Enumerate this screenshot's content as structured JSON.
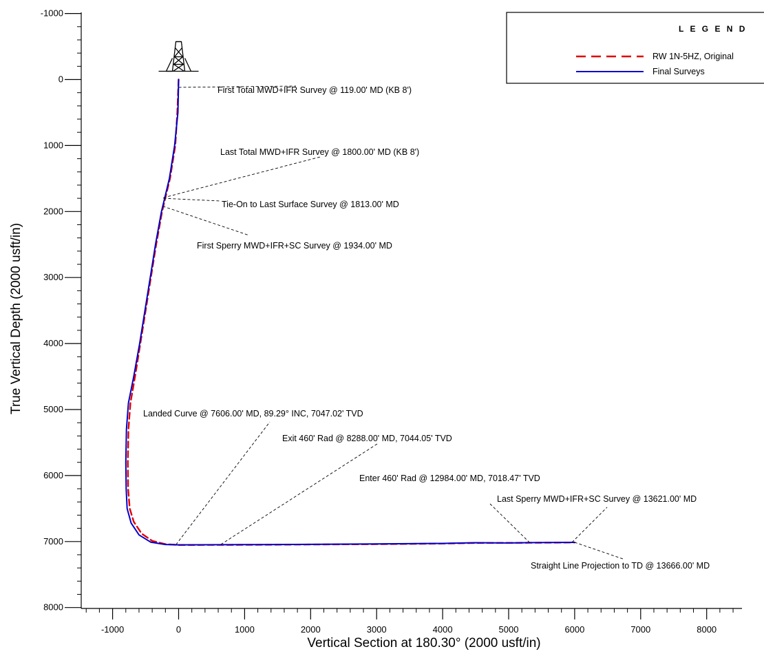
{
  "chart_data": {
    "type": "line",
    "xlabel": "Vertical Section at 180.30° (2000 usft/in)",
    "ylabel": "True Vertical Depth (2000 usft/in)",
    "xlim": [
      -1400,
      8500
    ],
    "ylim": [
      8000,
      -1000
    ],
    "y_inverted": true,
    "x_ticks": [
      -1000,
      0,
      1000,
      2000,
      3000,
      4000,
      5000,
      6000,
      7000,
      8000
    ],
    "x_tick_labels": [
      "-1000",
      "0",
      "1000",
      "2000",
      "3000",
      "4000",
      "5000",
      "6000",
      "7000",
      "8000"
    ],
    "y_ticks": [
      -1000,
      0,
      1000,
      2000,
      3000,
      4000,
      5000,
      6000,
      7000,
      8000
    ],
    "y_tick_labels": [
      "-1000",
      "0",
      "1000",
      "2000",
      "3000",
      "4000",
      "5000",
      "6000",
      "7000",
      "8000"
    ],
    "legend": {
      "title": "L E G E N D",
      "position": "top-right",
      "entries": [
        {
          "label": "RW 1N-5HZ, Original ",
          "style": "dashed",
          "color": "#e00000"
        },
        {
          "label": "Final Surveys",
          "style": "solid",
          "color": "#0000cc"
        }
      ]
    },
    "series": [
      {
        "name": "RW 1N-5HZ, Original ",
        "color": "#e00000",
        "style": "dashed",
        "points": [
          [
            0,
            0
          ],
          [
            -20,
            500
          ],
          [
            -50,
            1000
          ],
          [
            -130,
            1500
          ],
          [
            -250,
            2000
          ],
          [
            -340,
            2500
          ],
          [
            -420,
            3000
          ],
          [
            -500,
            3500
          ],
          [
            -580,
            4000
          ],
          [
            -660,
            4500
          ],
          [
            -730,
            4900
          ],
          [
            -760,
            5300
          ],
          [
            -770,
            5800
          ],
          [
            -765,
            6200
          ],
          [
            -740,
            6500
          ],
          [
            -680,
            6700
          ],
          [
            -560,
            6880
          ],
          [
            -400,
            6990
          ],
          [
            -200,
            7040
          ],
          [
            0,
            7052
          ],
          [
            1000,
            7050
          ],
          [
            2000,
            7045
          ],
          [
            3000,
            7040
          ],
          [
            4000,
            7030
          ],
          [
            4500,
            7022
          ],
          [
            5000,
            7020
          ],
          [
            5300,
            7019
          ],
          [
            6000,
            7015
          ]
        ]
      },
      {
        "name": "Final Surveys",
        "color": "#0000cc",
        "style": "solid",
        "points": [
          [
            0,
            0
          ],
          [
            -10,
            500
          ],
          [
            -60,
            1000
          ],
          [
            -140,
            1500
          ],
          [
            -260,
            2000
          ],
          [
            -350,
            2500
          ],
          [
            -430,
            3000
          ],
          [
            -510,
            3500
          ],
          [
            -590,
            4000
          ],
          [
            -680,
            4500
          ],
          [
            -760,
            4900
          ],
          [
            -790,
            5300
          ],
          [
            -800,
            5800
          ],
          [
            -795,
            6200
          ],
          [
            -780,
            6500
          ],
          [
            -720,
            6720
          ],
          [
            -600,
            6900
          ],
          [
            -420,
            7010
          ],
          [
            -200,
            7045
          ],
          [
            0,
            7050
          ],
          [
            1000,
            7047
          ],
          [
            2000,
            7043
          ],
          [
            3000,
            7037
          ],
          [
            4000,
            7028
          ],
          [
            4500,
            7018
          ],
          [
            5000,
            7022
          ],
          [
            5320,
            7017
          ],
          [
            6000,
            7012
          ]
        ]
      }
    ],
    "rig_symbol_at": [
      0,
      0
    ],
    "annotations": [
      {
        "text": "First Total MWD+IFR Survey @ 119.00' MD (KB 8')",
        "point": [
          0,
          119
        ]
      },
      {
        "text": "Last Total MWD+IFR Survey @ 1800.00' MD (KB 8')",
        "point": [
          -230,
          1790
        ]
      },
      {
        "text": "Tie-On to Last Surface Survey @ 1813.00' MD",
        "point": [
          -230,
          1800
        ]
      },
      {
        "text": "First Sperry MWD+IFR+SC Survey @ 1934.00' MD",
        "point": [
          -240,
          1920
        ]
      },
      {
        "text": "Landed Curve @ 7606.00' MD, 89.29° INC, 7047.02' TVD",
        "point": [
          -40,
          7047
        ]
      },
      {
        "text": "Exit 460' Rad @ 8288.00' MD, 7044.05' TVD",
        "point": [
          640,
          7044
        ]
      },
      {
        "text": "Enter 460' Rad @ 12984.00' MD, 7018.47' TVD",
        "point": [
          5320,
          7018
        ]
      },
      {
        "text": "Last Sperry MWD+IFR+SC Survey @ 13621.00' MD",
        "point": [
          5960,
          7012
        ]
      },
      {
        "text": "Straight Line Projection to TD @ 13666.00' MD",
        "point": [
          6000,
          7012
        ]
      }
    ]
  }
}
